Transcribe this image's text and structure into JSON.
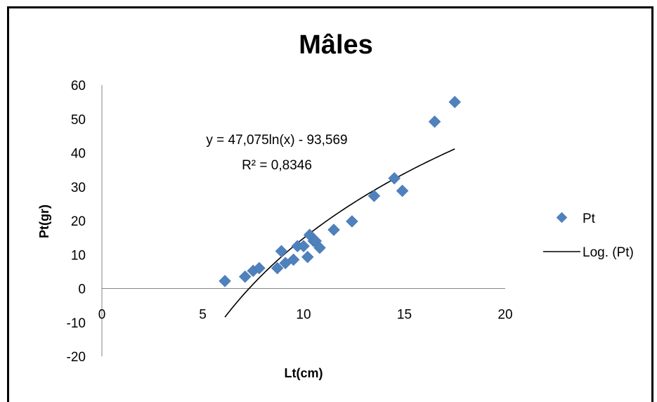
{
  "chart_data": {
    "type": "scatter",
    "title": "Mâles",
    "xlabel": "Lt(cm)",
    "ylabel": "Pt(gr)",
    "xlim": [
      0,
      20
    ],
    "ylim": [
      -20,
      60
    ],
    "xticks": [
      0,
      5,
      10,
      15,
      20
    ],
    "yticks": [
      -20,
      -10,
      0,
      10,
      20,
      30,
      40,
      50,
      60
    ],
    "grid": false,
    "legend_position": "right",
    "series": [
      {
        "name": "Pt",
        "marker": "diamond",
        "color": "#4F81BD",
        "x": [
          6.1,
          7.1,
          7.5,
          7.8,
          8.7,
          8.9,
          9.1,
          9.5,
          9.7,
          10.0,
          10.2,
          10.3,
          10.5,
          10.6,
          10.8,
          11.5,
          12.4,
          13.5,
          14.5,
          14.9,
          16.5,
          17.5
        ],
        "y": [
          2.2,
          3.5,
          5.2,
          6.0,
          6.0,
          11.0,
          7.5,
          8.5,
          12.5,
          12.5,
          9.3,
          15.8,
          14.0,
          14.0,
          12.0,
          17.3,
          19.8,
          27.3,
          32.5,
          28.8,
          49.2,
          55.0
        ]
      }
    ],
    "trendline": {
      "name": "Log. (Pt)",
      "type": "logarithmic",
      "a": 47.075,
      "b": -93.569,
      "x_range": [
        6.1,
        17.5
      ],
      "color": "#000000"
    },
    "annotations": {
      "equation": "y = 47,075ln(x) - 93,569",
      "r_squared": "R² = 0,8346"
    }
  }
}
